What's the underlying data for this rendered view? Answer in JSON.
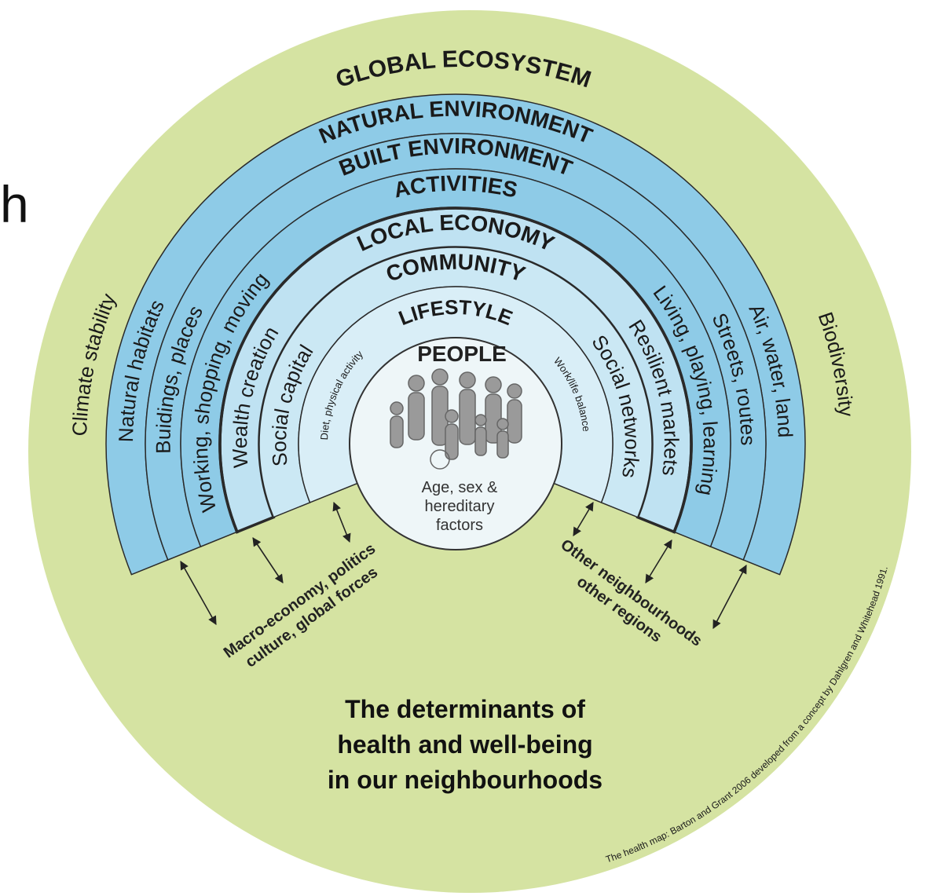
{
  "fragment": "h",
  "outer": {
    "title": "GLOBAL ECOSYSTEM",
    "left": "Climate stability",
    "right": "Biodiversity"
  },
  "bands": [
    {
      "title": "NATURAL ENVIRONMENT",
      "left": "Natural habitats",
      "right": "Air, water, land"
    },
    {
      "title": "BUILT ENVIRONMENT",
      "left": "Buidings, places",
      "right": "Streets, routes"
    },
    {
      "title": "ACTIVITIES",
      "left": "Working, shopping, moving",
      "right": "Living, playing, learning"
    },
    {
      "title": "LOCAL ECONOMY",
      "left": "Wealth creation",
      "right": "Resilient markets"
    },
    {
      "title": "COMMUNITY",
      "left": "Social capital",
      "right": "Social networks"
    },
    {
      "title": "LIFESTYLE",
      "left": "Diet, physical activity",
      "right": "Work/life balance"
    }
  ],
  "center": {
    "title": "PEOPLE",
    "lines": [
      "Age, sex &",
      "hereditary",
      "factors"
    ]
  },
  "links": {
    "left": [
      "Macro-economy, politics",
      "culture, global forces"
    ],
    "right": [
      "Other neighbourhoods",
      "other regions"
    ]
  },
  "heading": [
    "The determinants of",
    "health and well-being",
    "in our neighbourhoods"
  ],
  "credit": "The health map: Barton and Grant 2006 developed from a concept by Dahlgren and Whitehead 1991."
}
